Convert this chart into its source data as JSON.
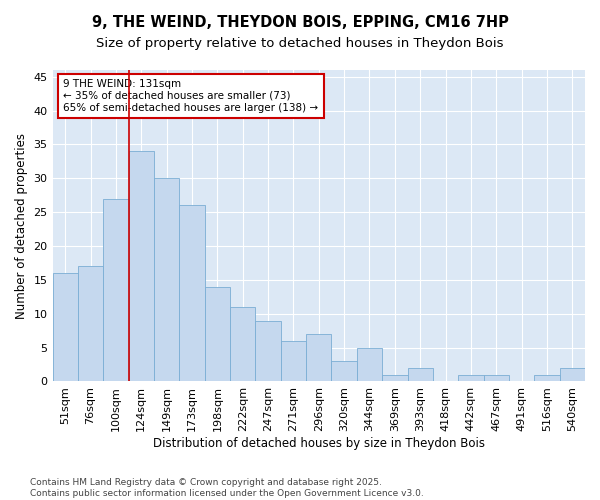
{
  "title": "9, THE WEIND, THEYDON BOIS, EPPING, CM16 7HP",
  "subtitle": "Size of property relative to detached houses in Theydon Bois",
  "xlabel": "Distribution of detached houses by size in Theydon Bois",
  "ylabel": "Number of detached properties",
  "categories": [
    "51sqm",
    "76sqm",
    "100sqm",
    "124sqm",
    "149sqm",
    "173sqm",
    "198sqm",
    "222sqm",
    "247sqm",
    "271sqm",
    "296sqm",
    "320sqm",
    "344sqm",
    "369sqm",
    "393sqm",
    "418sqm",
    "442sqm",
    "467sqm",
    "491sqm",
    "516sqm",
    "540sqm"
  ],
  "values": [
    16,
    17,
    27,
    34,
    30,
    26,
    14,
    11,
    9,
    6,
    7,
    3,
    5,
    1,
    2,
    0,
    1,
    1,
    0,
    1,
    2
  ],
  "bar_color": "#c5d8ee",
  "bar_edge_color": "#7aadd4",
  "vline_index": 3,
  "vline_color": "#cc0000",
  "annotation_text": "9 THE WEIND: 131sqm\n← 35% of detached houses are smaller (73)\n65% of semi-detached houses are larger (138) →",
  "annotation_box_color": "#ffffff",
  "annotation_box_edge": "#cc0000",
  "ylim": [
    0,
    46
  ],
  "yticks": [
    0,
    5,
    10,
    15,
    20,
    25,
    30,
    35,
    40,
    45
  ],
  "bg_color": "#dce8f5",
  "fig_bg_color": "#ffffff",
  "footer": "Contains HM Land Registry data © Crown copyright and database right 2025.\nContains public sector information licensed under the Open Government Licence v3.0.",
  "title_fontsize": 10.5,
  "subtitle_fontsize": 9.5,
  "axis_fontsize": 8.5,
  "tick_fontsize": 8,
  "annotation_fontsize": 7.5,
  "footer_fontsize": 6.5
}
